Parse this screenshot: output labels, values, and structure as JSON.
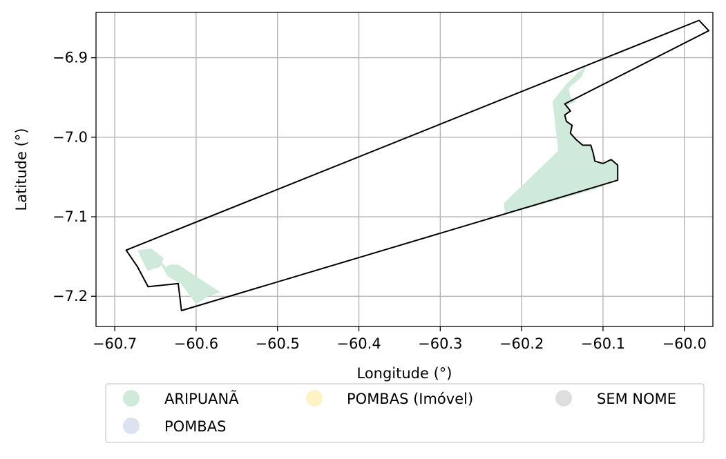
{
  "chart_data": {
    "type": "map",
    "xlabel": "Longitude (°)",
    "ylabel": "Latitude (°)",
    "xlim": [
      -60.723,
      -59.965
    ],
    "ylim": [
      -7.238,
      -6.843
    ],
    "grid": true,
    "x_ticks": [
      {
        "value": -60.7,
        "label": "−60.7"
      },
      {
        "value": -60.6,
        "label": "−60.6"
      },
      {
        "value": -60.5,
        "label": "−60.5"
      },
      {
        "value": -60.4,
        "label": "−60.4"
      },
      {
        "value": -60.3,
        "label": "−60.3"
      },
      {
        "value": -60.2,
        "label": "−60.2"
      },
      {
        "value": -60.1,
        "label": "−60.1"
      },
      {
        "value": -60.0,
        "label": "−60.0"
      }
    ],
    "y_ticks": [
      {
        "value": -6.9,
        "label": "−6.9"
      },
      {
        "value": -7.0,
        "label": "−7.0"
      },
      {
        "value": -7.1,
        "label": "−7.1"
      },
      {
        "value": -7.2,
        "label": "−7.2"
      }
    ],
    "legend_position": "bottom-center",
    "legend": [
      {
        "label": "ARIPUANÃ",
        "color": "#cfe9db"
      },
      {
        "label": "POMBAS (Imóvel)",
        "color": "#fdf3c6"
      },
      {
        "label": "SEM NOME",
        "color": "#dedede"
      },
      {
        "label": "POMBAS",
        "color": "#dde2f0"
      }
    ],
    "regions": [
      {
        "name": "ARIPUANÃ",
        "color": "#cfe9db",
        "polygons": [
          [
            [
              -60.145,
              -6.933
            ],
            [
              -60.13,
              -6.918
            ],
            [
              -60.12,
              -6.91
            ],
            [
              -60.127,
              -6.925
            ],
            [
              -60.142,
              -6.938
            ],
            [
              -60.14,
              -6.95
            ],
            [
              -60.132,
              -6.955
            ],
            [
              -60.145,
              -6.96
            ],
            [
              -60.14,
              -6.967
            ],
            [
              -60.147,
              -6.972
            ],
            [
              -60.145,
              -6.98
            ],
            [
              -60.138,
              -6.985
            ],
            [
              -60.14,
              -6.995
            ],
            [
              -60.133,
              -7.003
            ],
            [
              -60.125,
              -7.01
            ],
            [
              -60.115,
              -7.01
            ],
            [
              -60.112,
              -7.02
            ],
            [
              -60.11,
              -7.03
            ],
            [
              -60.1,
              -7.033
            ],
            [
              -60.09,
              -7.028
            ],
            [
              -60.082,
              -7.035
            ],
            [
              -60.082,
              -7.054
            ],
            [
              -60.112,
              -7.066
            ],
            [
              -60.22,
              -7.097
            ],
            [
              -60.222,
              -7.083
            ],
            [
              -60.155,
              -7.017
            ],
            [
              -60.162,
              -6.955
            ]
          ],
          [
            [
              -60.655,
              -7.14
            ],
            [
              -60.672,
              -7.142
            ],
            [
              -60.66,
              -7.168
            ],
            [
              -60.644,
              -7.163
            ],
            [
              -60.64,
              -7.152
            ]
          ],
          [
            [
              -60.647,
              -7.153
            ],
            [
              -60.637,
              -7.163
            ],
            [
              -60.632,
              -7.16
            ],
            [
              -60.622,
              -7.16
            ],
            [
              -60.6,
              -7.175
            ],
            [
              -60.588,
              -7.183
            ],
            [
              -60.57,
              -7.195
            ],
            [
              -60.585,
              -7.2
            ],
            [
              -60.6,
              -7.21
            ],
            [
              -60.618,
              -7.185
            ],
            [
              -60.635,
              -7.175
            ]
          ]
        ]
      }
    ],
    "boundary": [
      [
        -60.686,
        -7.142
      ],
      [
        -59.982,
        -6.853
      ],
      [
        -59.97,
        -6.866
      ],
      [
        -60.147,
        -6.958
      ],
      [
        -60.14,
        -6.967
      ],
      [
        -60.147,
        -6.972
      ],
      [
        -60.145,
        -6.98
      ],
      [
        -60.138,
        -6.985
      ],
      [
        -60.14,
        -6.995
      ],
      [
        -60.133,
        -7.003
      ],
      [
        -60.125,
        -7.01
      ],
      [
        -60.115,
        -7.01
      ],
      [
        -60.112,
        -7.02
      ],
      [
        -60.11,
        -7.03
      ],
      [
        -60.1,
        -7.033
      ],
      [
        -60.09,
        -7.028
      ],
      [
        -60.082,
        -7.035
      ],
      [
        -60.082,
        -7.054
      ],
      [
        -60.618,
        -7.218
      ],
      [
        -60.622,
        -7.184
      ],
      [
        -60.659,
        -7.188
      ],
      [
        -60.672,
        -7.163
      ]
    ]
  }
}
